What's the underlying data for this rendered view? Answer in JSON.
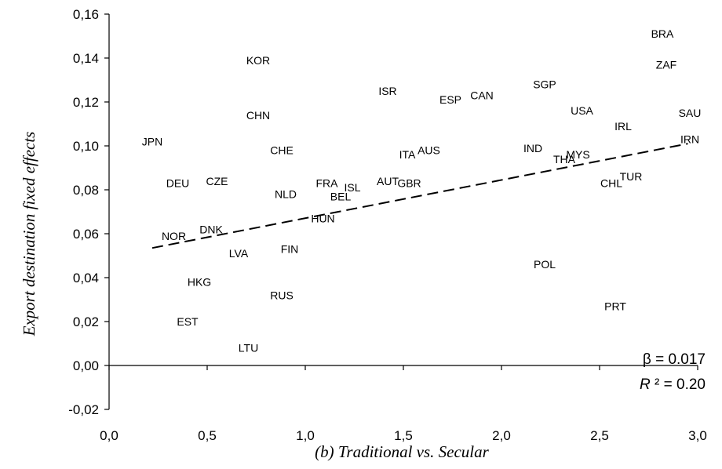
{
  "chart_data": {
    "type": "scatter",
    "xlabel": "(b) Traditional vs. Secular",
    "ylabel": "Export destination fixed effects",
    "xlim": [
      0.0,
      3.0
    ],
    "ylim": [
      -0.02,
      0.16
    ],
    "x_ticks": [
      "0,0",
      "0,5",
      "1,0",
      "1,5",
      "2,0",
      "2,5",
      "3,0"
    ],
    "y_ticks": [
      "-0,02",
      "0,00",
      "0,02",
      "0,04",
      "0,06",
      "0,08",
      "0,10",
      "0,12",
      "0,14",
      "0,16"
    ],
    "points": [
      {
        "label": "BRA",
        "x": 2.82,
        "y": 0.151
      },
      {
        "label": "ZAF",
        "x": 2.84,
        "y": 0.137
      },
      {
        "label": "KOR",
        "x": 0.76,
        "y": 0.139
      },
      {
        "label": "SGP",
        "x": 2.22,
        "y": 0.128
      },
      {
        "label": "ISR",
        "x": 1.42,
        "y": 0.125
      },
      {
        "label": "CAN",
        "x": 1.9,
        "y": 0.123
      },
      {
        "label": "ESP",
        "x": 1.74,
        "y": 0.121
      },
      {
        "label": "USA",
        "x": 2.41,
        "y": 0.116
      },
      {
        "label": "SAU",
        "x": 2.96,
        "y": 0.115
      },
      {
        "label": "CHN",
        "x": 0.76,
        "y": 0.114
      },
      {
        "label": "IRL",
        "x": 2.62,
        "y": 0.109
      },
      {
        "label": "IRN",
        "x": 2.96,
        "y": 0.103
      },
      {
        "label": "JPN",
        "x": 0.22,
        "y": 0.102
      },
      {
        "label": "IND",
        "x": 2.16,
        "y": 0.099
      },
      {
        "label": "AUS",
        "x": 1.63,
        "y": 0.098
      },
      {
        "label": "CHE",
        "x": 0.88,
        "y": 0.098
      },
      {
        "label": "ITA",
        "x": 1.52,
        "y": 0.096
      },
      {
        "label": "MYS",
        "x": 2.39,
        "y": 0.096
      },
      {
        "label": "THA",
        "x": 2.32,
        "y": 0.094
      },
      {
        "label": "TUR",
        "x": 2.66,
        "y": 0.086
      },
      {
        "label": "AUT",
        "x": 1.42,
        "y": 0.084
      },
      {
        "label": "CHL",
        "x": 2.56,
        "y": 0.083
      },
      {
        "label": "GBR",
        "x": 1.53,
        "y": 0.083
      },
      {
        "label": "FRA",
        "x": 1.11,
        "y": 0.083
      },
      {
        "label": "DEU",
        "x": 0.35,
        "y": 0.083
      },
      {
        "label": "CZE",
        "x": 0.55,
        "y": 0.084
      },
      {
        "label": "ISL",
        "x": 1.24,
        "y": 0.081
      },
      {
        "label": "NLD",
        "x": 0.9,
        "y": 0.078
      },
      {
        "label": "BEL",
        "x": 1.18,
        "y": 0.077
      },
      {
        "label": "HUN",
        "x": 1.09,
        "y": 0.067
      },
      {
        "label": "DNK",
        "x": 0.52,
        "y": 0.062
      },
      {
        "label": "NOR",
        "x": 0.33,
        "y": 0.059
      },
      {
        "label": "FIN",
        "x": 0.92,
        "y": 0.053
      },
      {
        "label": "LVA",
        "x": 0.66,
        "y": 0.051
      },
      {
        "label": "POL",
        "x": 2.22,
        "y": 0.046
      },
      {
        "label": "HKG",
        "x": 0.46,
        "y": 0.038
      },
      {
        "label": "RUS",
        "x": 0.88,
        "y": 0.032
      },
      {
        "label": "PRT",
        "x": 2.58,
        "y": 0.027
      },
      {
        "label": "EST",
        "x": 0.4,
        "y": 0.02
      },
      {
        "label": "LTU",
        "x": 0.71,
        "y": 0.008
      }
    ],
    "trendline": {
      "x": [
        0.22,
        2.95
      ],
      "y": [
        0.0535,
        0.101
      ],
      "style": "dashed"
    },
    "annotations": {
      "beta": "β = 0.017",
      "r2_label": "R",
      "r2_value": " ² = 0.20"
    },
    "grid": false
  }
}
